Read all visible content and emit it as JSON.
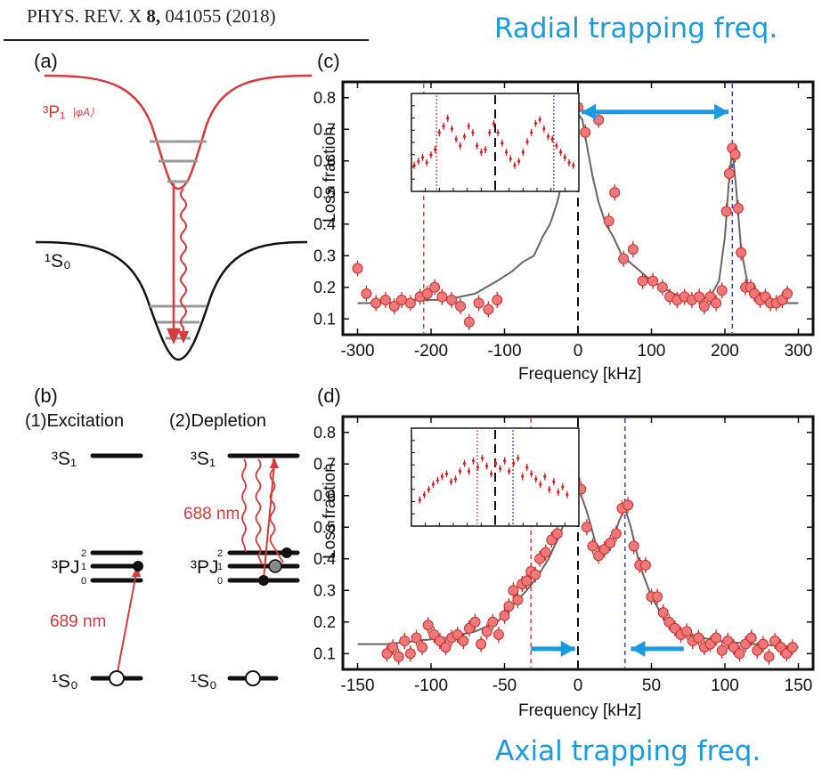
{
  "header": {
    "journal_prefix": "PHYS. REV. X ",
    "volume": "8,",
    "article": " 041055 (2018)",
    "radial_title": "Radial trapping freq.",
    "axial_title": "Axial trapping freq."
  },
  "panel_a": {
    "label": "(a)",
    "upper_state": "³P₁",
    "upper_ket": "|φA⟩",
    "lower_state": "¹S₀"
  },
  "panel_b": {
    "label": "(b)",
    "step1": "(1)Excitation",
    "step2": "(2)Depletion",
    "level_s1": "³S₁",
    "level_pj": "³PJ",
    "level_s0": "¹S₀",
    "sublevels": [
      "2",
      "1",
      "0"
    ],
    "wl_688": "688 nm",
    "wl_689": "689 nm"
  },
  "panel_c": {
    "label": "(c)",
    "xlabel": "Frequency [kHz]",
    "ylabel": "Loss fraction"
  },
  "panel_d": {
    "label": "(d)",
    "xlabel": "Frequency [kHz]",
    "ylabel": "Loss fraction"
  },
  "colors": {
    "accent_blue": "#1a9be0",
    "marker_red": "#f07878",
    "error_red": "#d42020",
    "line_gray": "#666666",
    "level_red": "#d63a3a"
  },
  "chart_data": [
    {
      "id": "c",
      "type": "scatter",
      "xlabel": "Frequency [kHz]",
      "ylabel": "Loss fraction",
      "xlim": [
        -320,
        320
      ],
      "ylim": [
        0.05,
        0.85
      ],
      "xticks": [
        -300,
        -200,
        -100,
        0,
        100,
        200,
        300
      ],
      "yticks": [
        0.1,
        0.2,
        0.3,
        0.4,
        0.5,
        0.6,
        0.7,
        0.8
      ],
      "vlines": [
        {
          "x": -210,
          "style": "red-dashed"
        },
        {
          "x": 0,
          "style": "black-dashed"
        },
        {
          "x": 210,
          "style": "blue-dashed"
        }
      ],
      "arrow": {
        "from": 5,
        "to": 205,
        "y": 0.755,
        "double": true
      },
      "series": [
        {
          "kind": "points",
          "x": [
            -300,
            -288,
            -275,
            -262,
            -250,
            -240,
            -228,
            -215,
            -205,
            -195,
            -185,
            -172,
            -160,
            -148,
            -135,
            -122,
            -110,
            -55,
            -38,
            -25,
            -18,
            -10,
            0,
            10,
            28,
            42,
            50,
            62,
            75,
            88,
            102,
            115,
            125,
            135,
            145,
            155,
            165,
            172,
            180,
            188,
            196,
            202,
            206,
            210,
            214,
            218,
            222,
            228,
            235,
            240,
            248,
            255,
            262,
            270,
            278,
            285
          ],
          "y": [
            0.26,
            0.18,
            0.15,
            0.16,
            0.14,
            0.16,
            0.15,
            0.17,
            0.18,
            0.2,
            0.17,
            0.16,
            0.14,
            0.09,
            0.15,
            0.13,
            0.16,
            0.58,
            0.72,
            0.75,
            0.7,
            0.74,
            0.77,
            0.69,
            0.73,
            0.41,
            0.5,
            0.29,
            0.32,
            0.22,
            0.22,
            0.2,
            0.17,
            0.16,
            0.17,
            0.16,
            0.17,
            0.14,
            0.17,
            0.15,
            0.19,
            0.44,
            0.56,
            0.64,
            0.62,
            0.45,
            0.31,
            0.2,
            0.2,
            0.18,
            0.16,
            0.17,
            0.15,
            0.15,
            0.16,
            0.18
          ]
        },
        {
          "kind": "line",
          "x": [
            -300,
            -260,
            -220,
            -180,
            -140,
            -110,
            -90,
            -75,
            -60,
            -48,
            -38,
            -28,
            -20,
            -12,
            -6,
            0,
            6,
            12,
            20,
            28,
            38,
            48,
            60,
            80,
            100,
            130,
            160,
            180,
            192,
            200,
            205,
            210,
            215,
            222,
            232,
            248,
            270,
            300
          ],
          "y": [
            0.15,
            0.15,
            0.16,
            0.16,
            0.18,
            0.22,
            0.25,
            0.28,
            0.3,
            0.36,
            0.4,
            0.47,
            0.55,
            0.65,
            0.72,
            0.75,
            0.73,
            0.65,
            0.55,
            0.47,
            0.4,
            0.36,
            0.3,
            0.26,
            0.22,
            0.18,
            0.16,
            0.17,
            0.22,
            0.36,
            0.52,
            0.64,
            0.52,
            0.32,
            0.2,
            0.17,
            0.15,
            0.15
          ]
        }
      ]
    },
    {
      "id": "c-inset",
      "type": "scatter",
      "xlim": [
        -300,
        300
      ],
      "ylim": [
        0.1,
        0.85
      ],
      "vlines": [
        {
          "x": -210,
          "style": "red-dotted"
        },
        {
          "x": 0,
          "style": "black-dashed"
        },
        {
          "x": 210,
          "style": "blue-dotted"
        }
      ],
      "series": [
        {
          "kind": "points",
          "x": [
            -290,
            -275,
            -260,
            -245,
            -230,
            -215,
            -200,
            -185,
            -170,
            -155,
            -140,
            -125,
            -110,
            -95,
            -80,
            -65,
            -50,
            -35,
            -20,
            -5,
            10,
            25,
            40,
            55,
            70,
            85,
            100,
            115,
            130,
            145,
            160,
            175,
            190,
            205,
            220,
            235,
            250,
            265,
            280
          ],
          "y": [
            0.3,
            0.33,
            0.36,
            0.32,
            0.38,
            0.42,
            0.55,
            0.6,
            0.66,
            0.58,
            0.5,
            0.45,
            0.52,
            0.6,
            0.55,
            0.45,
            0.4,
            0.42,
            0.55,
            0.62,
            0.55,
            0.47,
            0.4,
            0.35,
            0.3,
            0.33,
            0.4,
            0.48,
            0.55,
            0.62,
            0.65,
            0.58,
            0.52,
            0.5,
            0.45,
            0.4,
            0.36,
            0.32,
            0.3
          ]
        }
      ]
    },
    {
      "id": "d",
      "type": "scatter",
      "xlabel": "Frequency [kHz]",
      "ylabel": "Loss fraction",
      "xlim": [
        -160,
        160
      ],
      "ylim": [
        0.05,
        0.85
      ],
      "xticks": [
        -150,
        -100,
        -50,
        0,
        50,
        100,
        150
      ],
      "yticks": [
        0.1,
        0.2,
        0.3,
        0.4,
        0.5,
        0.6,
        0.7,
        0.8
      ],
      "vlines": [
        {
          "x": -32,
          "style": "red-dashed"
        },
        {
          "x": 0,
          "style": "black-dashed"
        },
        {
          "x": 32,
          "style": "blue-dashed"
        }
      ],
      "arrows": [
        {
          "from": -32,
          "to": -2,
          "y": 0.115
        },
        {
          "from": 72,
          "to": 36,
          "y": 0.115
        }
      ],
      "series": [
        {
          "kind": "points",
          "x": [
            -130,
            -126,
            -122,
            -118,
            -114,
            -110,
            -106,
            -102,
            -98,
            -94,
            -90,
            -86,
            -82,
            -78,
            -74,
            -70,
            -66,
            -62,
            -58,
            -54,
            -50,
            -47,
            -44,
            -41,
            -38,
            -35,
            -32,
            -29,
            -26,
            -22,
            -18,
            -14,
            -10,
            -6,
            -2,
            2,
            6,
            10,
            14,
            18,
            22,
            26,
            30,
            34,
            38,
            42,
            46,
            50,
            54,
            58,
            62,
            66,
            70,
            74,
            78,
            82,
            86,
            90,
            94,
            98,
            102,
            106,
            110,
            114,
            118,
            122,
            126,
            130,
            134,
            138,
            142,
            146
          ],
          "y": [
            0.1,
            0.12,
            0.09,
            0.14,
            0.1,
            0.15,
            0.12,
            0.19,
            0.16,
            0.14,
            0.12,
            0.15,
            0.16,
            0.14,
            0.18,
            0.2,
            0.13,
            0.17,
            0.2,
            0.16,
            0.22,
            0.25,
            0.3,
            0.27,
            0.32,
            0.33,
            0.36,
            0.35,
            0.4,
            0.42,
            0.46,
            0.48,
            0.53,
            0.58,
            0.65,
            0.62,
            0.5,
            0.44,
            0.41,
            0.43,
            0.45,
            0.48,
            0.56,
            0.57,
            0.44,
            0.38,
            0.38,
            0.28,
            0.28,
            0.23,
            0.2,
            0.18,
            0.16,
            0.17,
            0.14,
            0.15,
            0.12,
            0.13,
            0.15,
            0.11,
            0.14,
            0.12,
            0.1,
            0.13,
            0.15,
            0.11,
            0.13,
            0.09,
            0.14,
            0.12,
            0.1,
            0.12
          ]
        },
        {
          "kind": "line",
          "x": [
            -150,
            -130,
            -110,
            -90,
            -70,
            -55,
            -45,
            -35,
            -28,
            -20,
            -12,
            -6,
            0,
            6,
            12,
            18,
            24,
            28,
            32,
            36,
            42,
            50,
            60,
            75,
            95,
            120,
            150
          ],
          "y": [
            0.13,
            0.13,
            0.14,
            0.15,
            0.17,
            0.2,
            0.25,
            0.3,
            0.34,
            0.4,
            0.48,
            0.56,
            0.63,
            0.55,
            0.45,
            0.42,
            0.46,
            0.52,
            0.56,
            0.5,
            0.38,
            0.28,
            0.2,
            0.16,
            0.14,
            0.13,
            0.12
          ]
        }
      ]
    },
    {
      "id": "d-inset",
      "type": "scatter",
      "xlim": [
        -150,
        150
      ],
      "ylim": [
        0.1,
        0.85
      ],
      "vlines": [
        {
          "x": -32,
          "style": "red-dotted"
        },
        {
          "x": 0,
          "style": "black-dashed"
        },
        {
          "x": 32,
          "style": "blue-dotted"
        }
      ],
      "series": [
        {
          "kind": "points",
          "x": [
            -135,
            -127,
            -119,
            -111,
            -103,
            -95,
            -87,
            -79,
            -71,
            -63,
            -55,
            -47,
            -39,
            -31,
            -23,
            -15,
            -7,
            1,
            9,
            17,
            25,
            33,
            41,
            49,
            57,
            65,
            73,
            81,
            89,
            97,
            105,
            113,
            121,
            129
          ],
          "y": [
            0.3,
            0.34,
            0.38,
            0.42,
            0.45,
            0.48,
            0.5,
            0.44,
            0.46,
            0.52,
            0.58,
            0.52,
            0.6,
            0.55,
            0.62,
            0.56,
            0.5,
            0.58,
            0.54,
            0.6,
            0.52,
            0.58,
            0.62,
            0.48,
            0.55,
            0.5,
            0.46,
            0.42,
            0.48,
            0.38,
            0.44,
            0.36,
            0.4,
            0.34
          ]
        }
      ]
    }
  ]
}
